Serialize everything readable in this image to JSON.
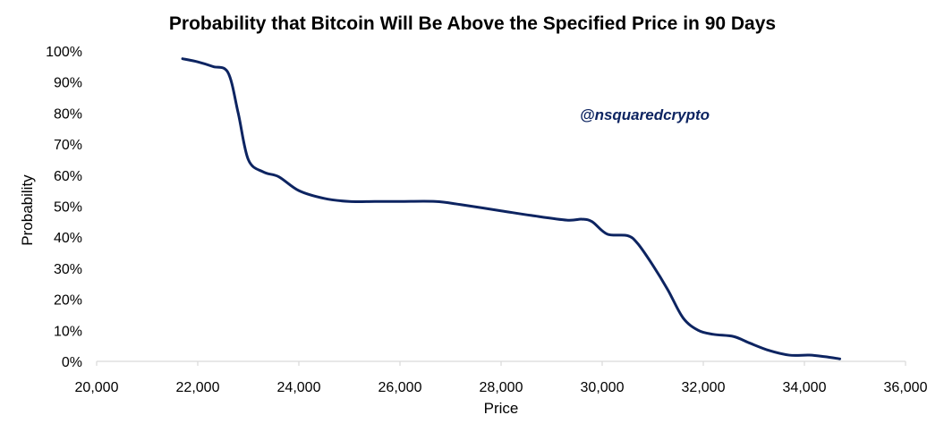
{
  "chart_data": {
    "type": "line",
    "title": "Probability that Bitcoin Will Be Above the Specified Price in 90 Days",
    "xlabel": "Price",
    "ylabel": "Probability",
    "xlim": [
      20000,
      36000
    ],
    "ylim": [
      0,
      100
    ],
    "x_ticks": [
      20000,
      22000,
      24000,
      26000,
      28000,
      30000,
      32000,
      34000,
      36000
    ],
    "x_tick_labels": [
      "20,000",
      "22,000",
      "24,000",
      "26,000",
      "28,000",
      "30,000",
      "32,000",
      "34,000",
      "36,000"
    ],
    "y_ticks": [
      0,
      10,
      20,
      30,
      40,
      50,
      60,
      70,
      80,
      90,
      100
    ],
    "y_tick_labels": [
      "0%",
      "10%",
      "20%",
      "30%",
      "40%",
      "50%",
      "60%",
      "70%",
      "80%",
      "90%",
      "100%"
    ],
    "grid": false,
    "annotation": "@nsquaredcrypto",
    "series": [
      {
        "name": "Probability",
        "color": "#0d2461",
        "x": [
          21700,
          22000,
          22300,
          22600,
          22800,
          23000,
          23300,
          23600,
          24000,
          24500,
          25000,
          25500,
          26000,
          26700,
          27200,
          28000,
          28600,
          29300,
          29600,
          29800,
          30100,
          30500,
          30700,
          31000,
          31300,
          31600,
          31900,
          32200,
          32600,
          32900,
          33300,
          33700,
          34100,
          34400,
          34700
        ],
        "y": [
          97.5,
          96.5,
          95,
          93,
          80,
          65,
          61,
          59.5,
          55,
          52.5,
          51.5,
          51.5,
          51.5,
          51.5,
          50.5,
          48.5,
          47,
          45.5,
          45.8,
          45,
          41,
          40.5,
          38,
          31,
          23,
          14,
          10,
          8.7,
          8,
          6,
          3.5,
          2,
          2,
          1.5,
          0.8
        ]
      }
    ]
  }
}
